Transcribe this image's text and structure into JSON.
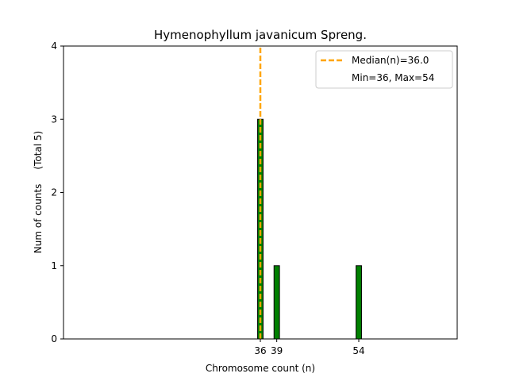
{
  "chart_data": {
    "type": "bar",
    "title": "Hymenophyllum javanicum Spreng.",
    "xlabel": "Chromosome count (n)",
    "ylabel": "Num of counts",
    "ylabel_total": "(Total 5)",
    "xlim": [
      0,
      72
    ],
    "ylim": [
      0,
      4
    ],
    "xticks": [
      36,
      39,
      54
    ],
    "yticks": [
      0,
      1,
      2,
      3,
      4
    ],
    "bar_width": 1,
    "bars": [
      {
        "x": 36,
        "count": 3
      },
      {
        "x": 39,
        "count": 1
      },
      {
        "x": 54,
        "count": 1
      }
    ],
    "median": 36.0,
    "grid": false,
    "legend_position": "top-right",
    "legend": {
      "median_label": "Median(n)=36.0",
      "range_label": "Min=36, Max=54"
    },
    "colors": {
      "bar_fill": "#008000",
      "bar_edge": "#000000",
      "median_line": "#FFA500"
    }
  }
}
